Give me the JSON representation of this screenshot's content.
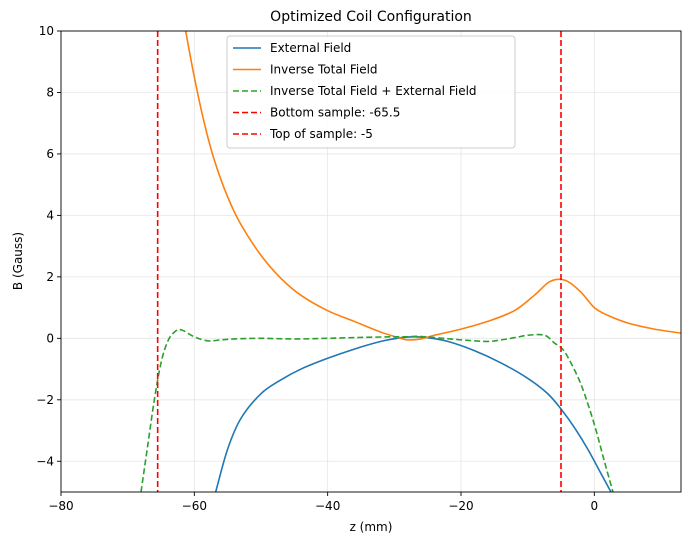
{
  "chart_data": {
    "type": "line",
    "title": "Optimized Coil Configuration",
    "xlabel": "z (mm)",
    "ylabel": "B (Gauss)",
    "xlim": [
      -80,
      13
    ],
    "ylim": [
      -5,
      10
    ],
    "grid": true,
    "legend_position": "top-center",
    "x_ticks": [
      -80,
      -60,
      -40,
      -20,
      0
    ],
    "x_tick_labels": [
      "−80",
      "−60",
      "−40",
      "−20",
      "0"
    ],
    "y_ticks": [
      -4,
      -2,
      0,
      2,
      4,
      6,
      8,
      10
    ],
    "y_tick_labels": [
      "−4",
      "−2",
      "0",
      "2",
      "4",
      "6",
      "8",
      "10"
    ],
    "series": [
      {
        "name": "External Field",
        "color": "#1f77b4",
        "style": "solid",
        "x": [
          -56.8,
          -55,
          -53,
          -50,
          -47,
          -44,
          -40,
          -36,
          -32,
          -29,
          -27,
          -25,
          -22,
          -18,
          -14,
          -10,
          -7,
          -5,
          -3,
          -1,
          1,
          2.5
        ],
        "y": [
          -5.0,
          -3.6,
          -2.6,
          -1.8,
          -1.35,
          -1.0,
          -0.65,
          -0.35,
          -0.1,
          0.02,
          0.05,
          0.02,
          -0.1,
          -0.4,
          -0.8,
          -1.3,
          -1.8,
          -2.3,
          -2.9,
          -3.6,
          -4.4,
          -5.0
        ]
      },
      {
        "name": "Inverse Total Field",
        "color": "#ff7f0e",
        "style": "solid",
        "x": [
          -61.3,
          -60,
          -58.5,
          -57,
          -55,
          -53,
          -50,
          -47,
          -44,
          -40,
          -36,
          -32,
          -29,
          -28,
          -26,
          -24,
          -20,
          -16,
          -12,
          -9,
          -7,
          -5.5,
          -4,
          -2,
          0,
          2,
          5,
          9,
          13
        ],
        "y": [
          10.0,
          8.5,
          7.0,
          5.8,
          4.6,
          3.7,
          2.7,
          1.95,
          1.4,
          0.9,
          0.55,
          0.2,
          0.0,
          -0.05,
          -0.02,
          0.1,
          0.3,
          0.55,
          0.9,
          1.4,
          1.8,
          1.92,
          1.85,
          1.5,
          1.0,
          0.75,
          0.5,
          0.3,
          0.17
        ]
      },
      {
        "name": "Inverse Total Field + External Field",
        "color": "#2ca02c",
        "style": "dashed",
        "x": [
          -68,
          -67,
          -66,
          -65,
          -64,
          -63,
          -62,
          -60,
          -58,
          -56,
          -54,
          -50,
          -45,
          -40,
          -35,
          -30,
          -28,
          -26,
          -20,
          -16,
          -14,
          -12,
          -10,
          -8,
          -7,
          -6,
          -5,
          -4,
          -2,
          0,
          1.5,
          2.8
        ],
        "y": [
          -5.0,
          -3.5,
          -2.0,
          -0.8,
          -0.1,
          0.2,
          0.28,
          0.05,
          -0.08,
          -0.05,
          -0.02,
          0.0,
          -0.02,
          0.0,
          0.03,
          0.05,
          0.05,
          0.06,
          -0.05,
          -0.1,
          -0.05,
          0.02,
          0.1,
          0.12,
          0.05,
          -0.15,
          -0.3,
          -0.6,
          -1.5,
          -2.8,
          -4.0,
          -5.0
        ]
      },
      {
        "name": "Bottom sample: -65.5",
        "color": "#ff0000",
        "style": "dashed",
        "vline": -65.5
      },
      {
        "name": "Top of sample: -5",
        "color": "#ff0000",
        "style": "dashed",
        "vline": -5
      }
    ]
  }
}
